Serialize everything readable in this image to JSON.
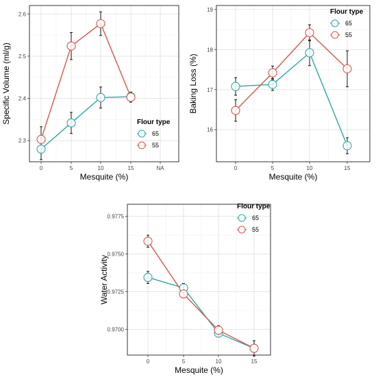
{
  "colors": {
    "flour_65": "#2aa7a5",
    "flour_55": "#d9534f",
    "grid": "#e3e3e3",
    "frame": "#333333",
    "errorbar": "#111111"
  },
  "chart_data": [
    {
      "type": "line",
      "xlabel": "Mesquite (%)",
      "ylabel": "Specific Volume (ml/g)",
      "x_ticks": [
        "0",
        "5",
        "10",
        "15",
        "NA"
      ],
      "x": [
        0,
        5,
        10,
        15
      ],
      "y_ticks": [
        "2.3",
        "2.4",
        "2.5",
        "2.6"
      ],
      "ylim": [
        2.25,
        2.62
      ],
      "legend": {
        "title": "Flour type",
        "position": "bottom-right"
      },
      "grid": true,
      "series": [
        {
          "name": "65",
          "values": [
            2.28,
            2.342,
            2.402,
            2.404
          ],
          "error": [
            0.025,
            0.025,
            0.025,
            0.01
          ]
        },
        {
          "name": "55",
          "values": [
            2.303,
            2.524,
            2.577,
            2.403
          ],
          "error": [
            0.03,
            0.032,
            0.028,
            0.012
          ]
        }
      ]
    },
    {
      "type": "line",
      "xlabel": "Mesquite (%)",
      "ylabel": "Baking Loss (%)",
      "x_ticks": [
        "0",
        "5",
        "10",
        "15"
      ],
      "x": [
        0,
        5,
        10,
        15
      ],
      "y_ticks": [
        "16",
        "17",
        "18",
        "19"
      ],
      "ylim": [
        15.2,
        19.1
      ],
      "legend": {
        "title": "Flour type",
        "position": "top-right"
      },
      "grid": true,
      "series": [
        {
          "name": "65",
          "values": [
            17.08,
            17.13,
            17.92,
            15.6
          ],
          "error": [
            0.22,
            0.15,
            0.32,
            0.2
          ]
        },
        {
          "name": "55",
          "values": [
            16.48,
            17.42,
            18.42,
            17.52
          ],
          "error": [
            0.27,
            0.17,
            0.2,
            0.45
          ]
        }
      ]
    },
    {
      "type": "line",
      "xlabel": "Mesquite (%)",
      "ylabel": "Water Activity",
      "x_ticks": [
        "0",
        "5",
        "10",
        "15"
      ],
      "x": [
        0,
        5,
        10,
        15
      ],
      "y_ticks": [
        "0.9700",
        "0.9725",
        "0.9750",
        "0.9775"
      ],
      "ylim": [
        0.9683,
        0.9783
      ],
      "legend": {
        "title": "Flour type",
        "position": "top-right"
      },
      "grid": true,
      "series": [
        {
          "name": "65",
          "values": [
            0.97345,
            0.97275,
            0.96975,
            0.96875
          ],
          "error": [
            0.0004,
            0.0003,
            0.0002,
            0.0005
          ]
        },
        {
          "name": "55",
          "values": [
            0.97585,
            0.97235,
            0.96995,
            0.96875
          ],
          "error": [
            0.0004,
            0.0002,
            0.0003,
            0.0002
          ]
        }
      ]
    }
  ]
}
